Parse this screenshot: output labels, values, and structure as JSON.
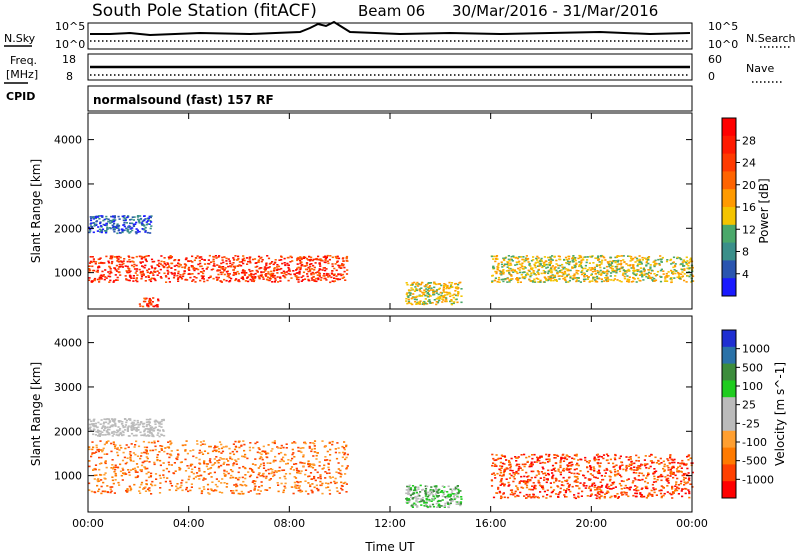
{
  "header": {
    "station": "South Pole Station (fitACF)",
    "beam": "Beam 06",
    "date_range": "30/Mar/2016 - 31/Mar/2016"
  },
  "noise_panel": {
    "left_label": "N.Sky",
    "right_label": "N.Search",
    "left_ticks": [
      "10^5",
      "10^0"
    ],
    "right_ticks": [
      "10^5",
      "10^0"
    ]
  },
  "freq_panel": {
    "left_label_line1": "Freq.",
    "left_label_line2": "[MHz]",
    "right_label": "Nave",
    "left_ticks": [
      "18",
      "8"
    ],
    "right_ticks": [
      "60",
      "0"
    ]
  },
  "cpid": {
    "label": "CPID",
    "mode": "normalsound (fast) 157 RF"
  },
  "colors": {
    "power_scale": [
      "#1a1aff",
      "#2a55b0",
      "#3a8f8a",
      "#4aa86a",
      "#f4c400",
      "#ff9a00",
      "#ff6400",
      "#ff3a00",
      "#ff1a00",
      "#ff0000"
    ],
    "velocity_scale": [
      "#ff0000",
      "#ff4000",
      "#ff7a00",
      "#ff9f30",
      "#bbbbbb",
      "#bbbbbb",
      "#1fcc1f",
      "#3c8c3c",
      "#2a72a8",
      "#1f2fd2"
    ]
  },
  "chart_data": [
    {
      "type": "heatmap",
      "name": "power",
      "xlabel": "",
      "ylabel": "Slant Range [km]",
      "x_ticks": [
        "00:00",
        "04:00",
        "08:00",
        "12:00",
        "16:00",
        "20:00",
        "00:00"
      ],
      "x_range_hours": [
        0,
        24
      ],
      "y_ticks": [
        1000,
        2000,
        3000,
        4000
      ],
      "ylim": [
        180,
        4600
      ],
      "colorbar": {
        "label": "Power [dB]",
        "ticks": [
          "28",
          "24",
          "20",
          "16",
          "12",
          "8",
          "4"
        ]
      },
      "echo_bands": [
        {
          "start_h": 0.0,
          "end_h": 10.3,
          "range_km": [
            800,
            1400
          ],
          "level": "high"
        },
        {
          "start_h": 0.0,
          "end_h": 2.5,
          "range_km": [
            1900,
            2300
          ],
          "level": "low"
        },
        {
          "start_h": 2.0,
          "end_h": 2.8,
          "range_km": [
            250,
            450
          ],
          "level": "high"
        },
        {
          "start_h": 12.6,
          "end_h": 14.8,
          "range_km": [
            300,
            800
          ],
          "level": "mid"
        },
        {
          "start_h": 16.0,
          "end_h": 24.0,
          "range_km": [
            800,
            1400
          ],
          "level": "mid"
        }
      ]
    },
    {
      "type": "heatmap",
      "name": "velocity",
      "xlabel": "Time UT",
      "ylabel": "Slant Range [km]",
      "x_ticks": [
        "00:00",
        "04:00",
        "08:00",
        "12:00",
        "16:00",
        "20:00",
        "00:00"
      ],
      "x_range_hours": [
        0,
        24
      ],
      "y_ticks": [
        1000,
        2000,
        3000,
        4000
      ],
      "ylim": [
        180,
        4600
      ],
      "colorbar": {
        "label": "Velocity [m s^-1]",
        "ticks": [
          "1000",
          "500",
          "100",
          "25",
          "-25",
          "-100",
          "-500",
          "-1000"
        ]
      },
      "echo_bands": [
        {
          "start_h": 0.0,
          "end_h": 10.3,
          "range_km": [
            600,
            1800
          ],
          "value": "-100"
        },
        {
          "start_h": 0.0,
          "end_h": 3.0,
          "range_km": [
            1900,
            2300
          ],
          "value": "25"
        },
        {
          "start_h": 12.6,
          "end_h": 14.8,
          "range_km": [
            300,
            800
          ],
          "value": "100"
        },
        {
          "start_h": 16.0,
          "end_h": 24.0,
          "range_km": [
            500,
            1500
          ],
          "value": "-500"
        }
      ]
    }
  ]
}
